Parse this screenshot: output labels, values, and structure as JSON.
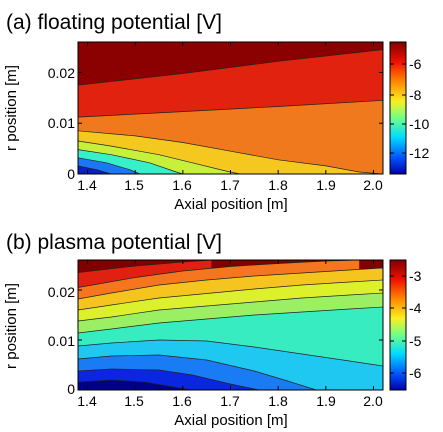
{
  "chart_data": [
    {
      "type": "heatmap",
      "title": "(a) floating potential [V]",
      "xlabel": "Axial position [m]",
      "ylabel": "r position [m]",
      "xlim": [
        1.38,
        2.02
      ],
      "ylim": [
        0,
        0.026
      ],
      "x_ticks": [
        "1.4",
        "1.5",
        "1.6",
        "1.7",
        "1.8",
        "1.9",
        "2.0"
      ],
      "y_ticks": [
        "0",
        "0.01",
        "0.02"
      ],
      "colorbar": {
        "range": [
          -14,
          -5
        ],
        "ticks": [
          "-6",
          "-8",
          "-10",
          "-12"
        ]
      },
      "contour_levels": [
        -6.5,
        -8.5,
        -9.5,
        -10.5,
        -11.5,
        -12.5,
        -13.5
      ],
      "contour_colors": [
        "#8b0000",
        "#e0220e",
        "#f0781d",
        "#f4c81e",
        "#c6f03a",
        "#37f0c8",
        "#1a78f4",
        "#0a1ec8"
      ],
      "contour_curves": [
        {
          "level": -6.5,
          "x": [
            1.38,
            1.6,
            1.8,
            2.02
          ],
          "y": [
            0.0175,
            0.0198,
            0.0222,
            0.0245
          ]
        },
        {
          "level": -8.5,
          "x": [
            1.38,
            1.6,
            1.8,
            2.02
          ],
          "y": [
            0.0112,
            0.0123,
            0.0133,
            0.0145
          ]
        },
        {
          "level": -9.5,
          "x": [
            1.38,
            1.5,
            1.6,
            1.7,
            1.8,
            1.9,
            1.97,
            2.02
          ],
          "y": [
            0.0085,
            0.0075,
            0.0062,
            0.0045,
            0.0028,
            0.0016,
            0.0004,
            0.0
          ]
        },
        {
          "level": -10.5,
          "x": [
            1.38,
            1.45,
            1.55,
            1.62,
            1.69,
            1.72
          ],
          "y": [
            0.0065,
            0.0055,
            0.0038,
            0.0022,
            0.0006,
            0.0
          ]
        },
        {
          "level": -11.5,
          "x": [
            1.38,
            1.45,
            1.53,
            1.58,
            1.6
          ],
          "y": [
            0.0048,
            0.0038,
            0.0022,
            0.0006,
            0.0
          ]
        },
        {
          "level": -12.5,
          "x": [
            1.38,
            1.44,
            1.49,
            1.51
          ],
          "y": [
            0.0032,
            0.0022,
            0.0008,
            0.0
          ]
        },
        {
          "level": -13.5,
          "x": [
            1.38,
            1.42,
            1.45
          ],
          "y": [
            0.0016,
            0.0008,
            0.0
          ]
        }
      ]
    },
    {
      "type": "heatmap",
      "title": "(b) plasma potential [V]",
      "xlabel": "Axial position [m]",
      "ylabel": "r position [m]",
      "xlim": [
        1.38,
        2.02
      ],
      "ylim": [
        0,
        0.026
      ],
      "x_ticks": [
        "1.4",
        "1.5",
        "1.6",
        "1.7",
        "1.8",
        "1.9",
        "2.0"
      ],
      "y_ticks": [
        "0",
        "0.01",
        "0.02"
      ],
      "colorbar": {
        "range": [
          -6.6,
          -2.6
        ],
        "ticks": [
          "-3",
          "-4",
          "-5",
          "-6"
        ]
      },
      "contour_levels": [
        -2.8,
        -3.2,
        -3.6,
        -4.0,
        -4.4,
        -4.8,
        -5.2,
        -5.6,
        -6.0,
        -6.4
      ],
      "contour_colors": [
        "#7f0000",
        "#e02010",
        "#f5761e",
        "#f6c41e",
        "#ddf02c",
        "#9af062",
        "#37ecc0",
        "#1ec8f0",
        "#1a7cf4",
        "#0a26e0",
        "#00008b"
      ],
      "contour_curves": [
        {
          "level": -2.8,
          "x": [
            1.38,
            1.5,
            1.6,
            1.66
          ],
          "y": [
            0.0235,
            0.0248,
            0.0256,
            0.026
          ]
        },
        {
          "level": -3.2,
          "x": [
            1.38,
            1.5,
            1.6,
            1.7,
            1.8,
            1.9,
            1.97
          ],
          "y": [
            0.0205,
            0.0225,
            0.0238,
            0.0247,
            0.0253,
            0.0258,
            0.026
          ]
        },
        {
          "level": -3.6,
          "x": [
            1.38,
            1.45,
            1.55,
            1.65,
            1.75,
            1.85,
            1.95,
            2.02
          ],
          "y": [
            0.0182,
            0.0194,
            0.021,
            0.022,
            0.0228,
            0.0234,
            0.024,
            0.0244
          ]
        },
        {
          "level": -4.0,
          "x": [
            1.38,
            1.45,
            1.55,
            1.65,
            1.75,
            1.85,
            1.95,
            2.02
          ],
          "y": [
            0.016,
            0.017,
            0.0184,
            0.0193,
            0.0202,
            0.021,
            0.0216,
            0.022
          ]
        },
        {
          "level": -4.4,
          "x": [
            1.38,
            1.45,
            1.55,
            1.65,
            1.75,
            1.85,
            1.95,
            2.02
          ],
          "y": [
            0.0138,
            0.0146,
            0.016,
            0.0168,
            0.0176,
            0.0184,
            0.019,
            0.0194
          ]
        },
        {
          "level": -4.8,
          "x": [
            1.38,
            1.45,
            1.55,
            1.65,
            1.75,
            1.85,
            1.95,
            2.02
          ],
          "y": [
            0.0114,
            0.0122,
            0.0134,
            0.0142,
            0.015,
            0.0156,
            0.0162,
            0.0166
          ]
        },
        {
          "level": -5.2,
          "x": [
            1.38,
            1.45,
            1.55,
            1.65,
            1.75,
            1.85,
            1.95,
            2.02
          ],
          "y": [
            0.0088,
            0.0094,
            0.01,
            0.0098,
            0.0086,
            0.0072,
            0.0058,
            0.0048
          ]
        },
        {
          "level": -5.6,
          "x": [
            1.38,
            1.45,
            1.55,
            1.65,
            1.75,
            1.82,
            1.88
          ],
          "y": [
            0.0062,
            0.0068,
            0.007,
            0.006,
            0.0038,
            0.0018,
            0.0
          ]
        },
        {
          "level": -6.0,
          "x": [
            1.38,
            1.45,
            1.55,
            1.62,
            1.7,
            1.76
          ],
          "y": [
            0.0038,
            0.0042,
            0.004,
            0.003,
            0.0012,
            0.0
          ]
        },
        {
          "level": -6.4,
          "x": [
            1.38,
            1.45,
            1.52,
            1.58,
            1.62
          ],
          "y": [
            0.0016,
            0.002,
            0.0016,
            0.0006,
            0.0
          ]
        }
      ]
    }
  ]
}
